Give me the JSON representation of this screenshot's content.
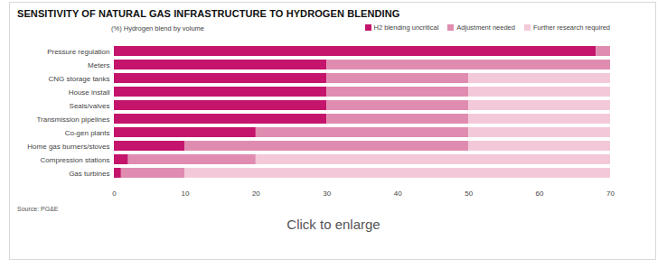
{
  "chart_data": {
    "type": "bar",
    "orientation": "horizontal",
    "stacked": true,
    "title": "SENSITIVITY OF NATURAL GAS INFRASTRUCTURE TO HYDROGEN BLENDING",
    "subtitle": "(%) Hydrogen blend by volume",
    "source": "Source: PG&E",
    "caption": "Click to enlarge",
    "categories": [
      "Pressure regulation",
      "Meters",
      "CNG storage tanks",
      "House install",
      "Seals/valves",
      "Transmission pipelines",
      "Co-gen plants",
      "Home gas burners/stoves",
      "Compression stations",
      "Gas turbines"
    ],
    "series": [
      {
        "name": "H2 blending uncritical",
        "color": "#c4146c",
        "values": [
          68,
          30,
          30,
          30,
          30,
          30,
          20,
          10,
          2,
          1
        ]
      },
      {
        "name": "Adjustment needed",
        "color": "#e08cb0",
        "values": [
          2,
          40,
          20,
          20,
          20,
          20,
          30,
          40,
          18,
          9
        ]
      },
      {
        "name": "Further research required",
        "color": "#f3c9da",
        "values": [
          0,
          0,
          20,
          20,
          20,
          20,
          20,
          20,
          50,
          60
        ]
      }
    ],
    "xlim": [
      0,
      70
    ],
    "xticks": [
      0,
      10,
      20,
      30,
      40,
      50,
      60,
      70
    ],
    "grid": false,
    "legend": "top-right"
  }
}
